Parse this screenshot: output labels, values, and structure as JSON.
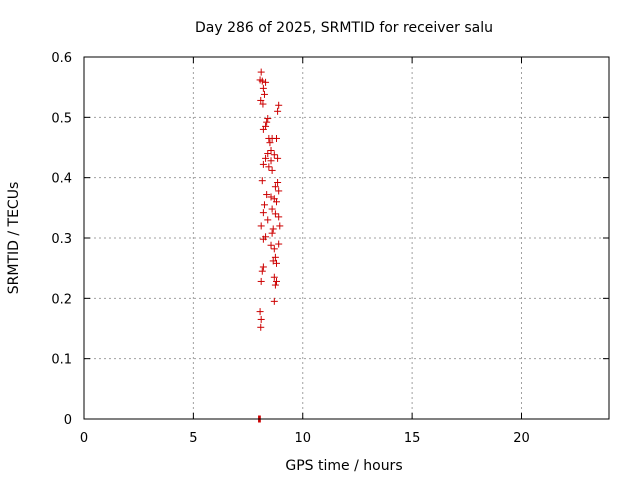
{
  "chart_data": {
    "type": "scatter",
    "title": "Day 286 of 2025, SRMTID for receiver salu",
    "xlabel": "GPS time / hours",
    "ylabel": "SRMTID / TECUs",
    "xlim": [
      0,
      24
    ],
    "ylim": [
      0,
      0.6
    ],
    "xticks": [
      0,
      5,
      10,
      15,
      20
    ],
    "yticks": [
      0,
      0.1,
      0.2,
      0.3,
      0.4,
      0.5,
      0.6
    ],
    "grid": true,
    "marker": "plus",
    "color": "#cc0000",
    "series": [
      {
        "name": "SRMTID",
        "points": [
          [
            8.1,
            0.575
          ],
          [
            8.05,
            0.562
          ],
          [
            8.15,
            0.56
          ],
          [
            8.3,
            0.558
          ],
          [
            8.2,
            0.548
          ],
          [
            8.25,
            0.538
          ],
          [
            8.08,
            0.528
          ],
          [
            8.18,
            0.522
          ],
          [
            8.9,
            0.52
          ],
          [
            8.85,
            0.51
          ],
          [
            8.4,
            0.498
          ],
          [
            8.35,
            0.492
          ],
          [
            8.3,
            0.485
          ],
          [
            8.2,
            0.48
          ],
          [
            8.6,
            0.465
          ],
          [
            8.45,
            0.465
          ],
          [
            8.8,
            0.465
          ],
          [
            8.5,
            0.458
          ],
          [
            8.55,
            0.445
          ],
          [
            8.4,
            0.44
          ],
          [
            8.7,
            0.438
          ],
          [
            8.85,
            0.432
          ],
          [
            8.3,
            0.432
          ],
          [
            8.55,
            0.428
          ],
          [
            8.2,
            0.422
          ],
          [
            8.45,
            0.418
          ],
          [
            8.6,
            0.412
          ],
          [
            8.15,
            0.395
          ],
          [
            8.85,
            0.392
          ],
          [
            8.75,
            0.385
          ],
          [
            8.9,
            0.378
          ],
          [
            8.35,
            0.372
          ],
          [
            8.55,
            0.368
          ],
          [
            8.7,
            0.365
          ],
          [
            8.8,
            0.36
          ],
          [
            8.25,
            0.355
          ],
          [
            8.6,
            0.348
          ],
          [
            8.2,
            0.342
          ],
          [
            8.75,
            0.34
          ],
          [
            8.9,
            0.335
          ],
          [
            8.4,
            0.33
          ],
          [
            8.95,
            0.32
          ],
          [
            8.1,
            0.32
          ],
          [
            8.65,
            0.315
          ],
          [
            8.6,
            0.308
          ],
          [
            8.3,
            0.302
          ],
          [
            8.2,
            0.298
          ],
          [
            8.9,
            0.29
          ],
          [
            8.55,
            0.288
          ],
          [
            8.7,
            0.282
          ],
          [
            8.75,
            0.268
          ],
          [
            8.65,
            0.262
          ],
          [
            8.8,
            0.258
          ],
          [
            8.2,
            0.252
          ],
          [
            8.15,
            0.245
          ],
          [
            8.7,
            0.235
          ],
          [
            8.8,
            0.228
          ],
          [
            8.1,
            0.228
          ],
          [
            8.75,
            0.222
          ],
          [
            8.7,
            0.195
          ],
          [
            8.05,
            0.178
          ],
          [
            8.1,
            0.165
          ],
          [
            8.08,
            0.152
          ]
        ]
      }
    ],
    "baseline_points_x": [
      7.98,
      8.0,
      8.02,
      8.04,
      8.06
    ],
    "baseline_value": 0
  }
}
